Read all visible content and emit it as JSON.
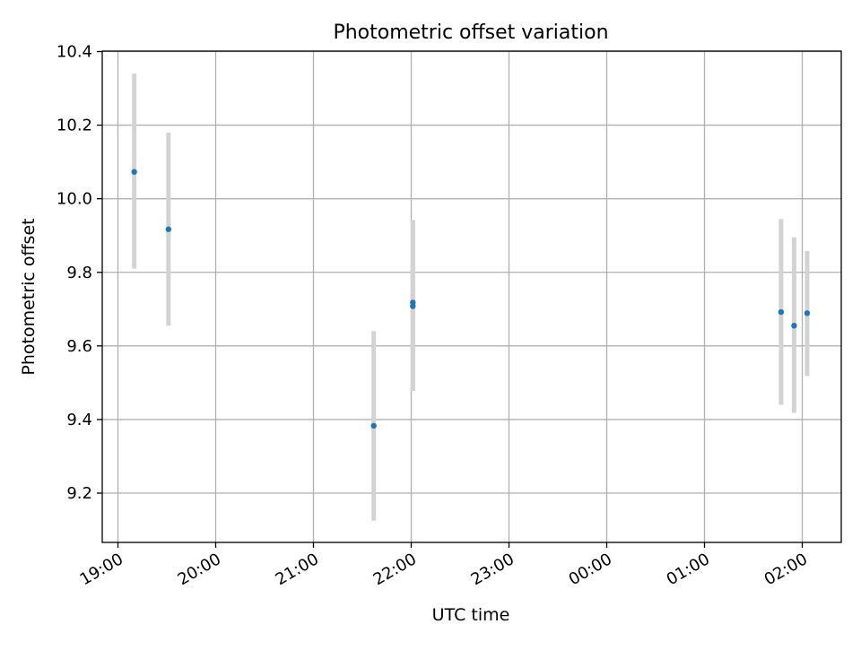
{
  "chart_data": {
    "type": "scatter",
    "title": "Photometric offset variation",
    "xlabel": "UTC time",
    "ylabel": "Photometric offset",
    "x_is_time": true,
    "xlim": [
      "19:00",
      "02:00"
    ],
    "ylim": [
      9.06,
      10.4
    ],
    "x_ticks": [
      "19:00",
      "20:00",
      "21:00",
      "22:00",
      "23:00",
      "00:00",
      "01:00",
      "02:00"
    ],
    "y_ticks": [
      "9.2",
      "9.4",
      "9.6",
      "9.8",
      "10.0",
      "10.2",
      "10.4"
    ],
    "grid": true,
    "points": [
      {
        "x": "19:10",
        "y": 10.073,
        "ylow": 9.81,
        "yhigh": 10.34
      },
      {
        "x": "19:31",
        "y": 9.917,
        "ylow": 9.655,
        "yhigh": 10.18
      },
      {
        "x": "21:37",
        "y": 9.383,
        "ylow": 9.125,
        "yhigh": 9.64
      },
      {
        "x": "22:01",
        "y": 9.718,
        "ylow": 9.478,
        "yhigh": 9.942
      },
      {
        "x": "22:01",
        "y": 9.708,
        "ylow": 9.478,
        "yhigh": 9.942
      },
      {
        "x": "01:47",
        "y": 9.692,
        "ylow": 9.44,
        "yhigh": 9.945
      },
      {
        "x": "01:55",
        "y": 9.655,
        "ylow": 9.418,
        "yhigh": 9.895
      },
      {
        "x": "02:03",
        "y": 9.689,
        "ylow": 9.518,
        "yhigh": 9.858
      }
    ],
    "colors": {
      "points": "#1f77b4",
      "errorbars": "#d3d3d3",
      "grid": "#b0b0b0",
      "axes": "#000000"
    }
  }
}
